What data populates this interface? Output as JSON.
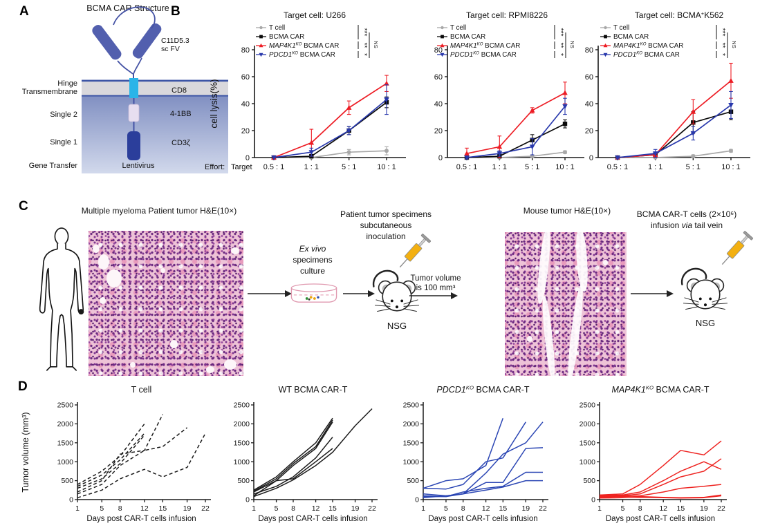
{
  "panelA": {
    "label": "A",
    "title": "BCMA CAR Structure",
    "scfv1": "C11D5.3",
    "scfv2": "sc FV",
    "left_labels": [
      "Hinge",
      "Transmembrane",
      "Single 2",
      "Single 1",
      "Gene Transfer"
    ],
    "right_labels": [
      "CD8",
      "4-1BB",
      "CD3ζ"
    ],
    "gene_transfer_value": "Lentivirus",
    "colors": {
      "membrane": "#d9d8dc",
      "membrane_edge": "#3c55a6",
      "transmembrane_cyan": "#2ab4e8",
      "costim_lavender": "#e7def0",
      "cd3z_blue": "#2b3e9b",
      "scfv_blue": "#525fae"
    }
  },
  "panelB": {
    "label": "B",
    "title_prefix": "Target cell:",
    "ylabel": "cell lysis(%)",
    "effort_label": [
      "Effort:",
      "Target"
    ],
    "legend": [
      {
        "gene": "",
        "sup": "",
        "rest": "T cell",
        "color": "#a8a8a8",
        "marker": "circle"
      },
      {
        "gene": "",
        "sup": "",
        "rest": "BCMA CAR",
        "color": "#0a0a0a",
        "marker": "square"
      },
      {
        "gene": "MAP4K1",
        "sup": "KO",
        "rest": " BCMA CAR",
        "color": "#ed1c24",
        "marker": "triangle-up"
      },
      {
        "gene": "PDCD1",
        "sup": "KO",
        "rest": " BCMA CAR",
        "color": "#2838ac",
        "marker": "triangle-down"
      }
    ],
    "significance": [
      "***",
      "**",
      "*",
      "NS"
    ]
  },
  "panelC": {
    "label": "C",
    "title_left": "Multiple myeloma  Patient tumor H&E(10×)",
    "exvivo_l1": "Ex vivo",
    "exvivo_l2": "specimens",
    "exvivo_l3": "culture",
    "inoc_l1": "Patient tumor specimens",
    "inoc_l2": "subcutaneous",
    "inoc_l3": "inoculation",
    "tumor_vol_l1": "Tumor volume",
    "tumor_vol_l2": "is 100 mm³",
    "nsg": "NSG",
    "title_mouse_he": "Mouse tumor H&E(10×)",
    "cart_l1": "BCMA CAR-T cells (2×10⁶)",
    "cart_l2_pre": "infusion ",
    "cart_l2_via": "via",
    "cart_l2_post": " tail vein"
  },
  "panelD": {
    "label": "D",
    "xlabel": "Days post CAR-T cells infusion",
    "ylabel": "Tumor volume (mm³)"
  },
  "chart_data": [
    {
      "id": "b-u266",
      "type": "line",
      "panel": "B",
      "title_value": {
        "pre": "U266",
        "sup": "",
        "post": ""
      },
      "categories": [
        "0.5 : 1",
        "1 : 1",
        "5 : 1",
        "10 : 1"
      ],
      "ylim": [
        0,
        80
      ],
      "yticks": [
        0,
        20,
        40,
        60,
        80
      ],
      "series": [
        {
          "name": "T cell",
          "color": "#a8a8a8",
          "marker": "circle",
          "values": [
            0,
            0,
            4,
            5
          ],
          "errors": [
            0.5,
            0.5,
            2,
            3
          ]
        },
        {
          "name": "BCMA CAR",
          "color": "#0a0a0a",
          "marker": "square",
          "values": [
            0,
            1,
            20,
            41
          ],
          "errors": [
            0.5,
            1,
            3,
            4
          ]
        },
        {
          "name": "MAP4K1KO BCMA CAR",
          "color": "#ed1c24",
          "marker": "triangle-up",
          "values": [
            0,
            11,
            37,
            55
          ],
          "errors": [
            0.5,
            10,
            5,
            6
          ]
        },
        {
          "name": "PDCD1KO BCMA CAR",
          "color": "#2838ac",
          "marker": "triangle-down",
          "values": [
            0,
            4,
            20,
            43
          ],
          "errors": [
            0.5,
            3,
            3,
            11
          ]
        }
      ]
    },
    {
      "id": "b-rpmi",
      "type": "line",
      "panel": "B",
      "title_value": {
        "pre": "RPMI8226",
        "sup": "",
        "post": ""
      },
      "categories": [
        "0.5 : 1",
        "1 : 1",
        "5 : 1",
        "10 : 1"
      ],
      "ylim": [
        0,
        80
      ],
      "yticks": [
        0,
        20,
        40,
        60,
        80
      ],
      "series": [
        {
          "name": "T cell",
          "color": "#a8a8a8",
          "marker": "circle",
          "values": [
            0,
            0,
            1,
            4
          ],
          "errors": [
            0.5,
            0.5,
            1,
            1
          ]
        },
        {
          "name": "BCMA CAR",
          "color": "#0a0a0a",
          "marker": "square",
          "values": [
            0,
            1,
            13,
            25
          ],
          "errors": [
            0.5,
            1,
            4,
            3
          ]
        },
        {
          "name": "MAP4K1KO BCMA CAR",
          "color": "#ed1c24",
          "marker": "triangle-up",
          "values": [
            3,
            8,
            35,
            48
          ],
          "errors": [
            4,
            8,
            2,
            8
          ]
        },
        {
          "name": "PDCD1KO BCMA CAR",
          "color": "#2838ac",
          "marker": "triangle-down",
          "values": [
            0,
            3,
            8,
            38
          ],
          "errors": [
            1,
            2,
            6,
            6
          ]
        }
      ]
    },
    {
      "id": "b-k562",
      "type": "line",
      "panel": "B",
      "title_value": {
        "pre": "BCMA",
        "sup": "+",
        "post": "K562"
      },
      "categories": [
        "0.5 : 1",
        "1 : 1",
        "5 : 1",
        "10 : 1"
      ],
      "ylim": [
        0,
        80
      ],
      "yticks": [
        0,
        20,
        40,
        60,
        80
      ],
      "series": [
        {
          "name": "T cell",
          "color": "#a8a8a8",
          "marker": "circle",
          "values": [
            0,
            0,
            1,
            5
          ],
          "errors": [
            0.5,
            0.5,
            1,
            1
          ]
        },
        {
          "name": "BCMA CAR",
          "color": "#0a0a0a",
          "marker": "square",
          "values": [
            0,
            2,
            26,
            34
          ],
          "errors": [
            0.5,
            2,
            8,
            6
          ]
        },
        {
          "name": "MAP4K1KO BCMA CAR",
          "color": "#ed1c24",
          "marker": "triangle-up",
          "values": [
            0,
            2,
            34,
            57
          ],
          "errors": [
            0.5,
            2,
            9,
            13
          ]
        },
        {
          "name": "PDCD1KO BCMA CAR",
          "color": "#2838ac",
          "marker": "triangle-down",
          "values": [
            0,
            3,
            18,
            39
          ],
          "errors": [
            1,
            3,
            5,
            10
          ]
        }
      ]
    },
    {
      "id": "d-tcell",
      "type": "line",
      "panel": "D",
      "title": {
        "gene": "",
        "sup": "",
        "rest": "T cell"
      },
      "x": [
        1,
        5,
        8,
        12,
        15,
        19,
        22
      ],
      "xlabel": "Days post CAR-T cells infusion",
      "ylim": [
        0,
        2500
      ],
      "yticks": [
        0,
        500,
        1000,
        1500,
        2000,
        2500
      ],
      "color": "#1a1a1a",
      "dash": true,
      "lines": [
        [
          400,
          750,
          1150,
          2000,
          null,
          null,
          null
        ],
        [
          350,
          650,
          1050,
          1750,
          null,
          null,
          null
        ],
        [
          300,
          550,
          950,
          1700,
          null,
          null,
          null
        ],
        [
          200,
          500,
          1200,
          1300,
          2250,
          null,
          null
        ],
        [
          150,
          400,
          900,
          1300,
          1400,
          1900,
          null
        ],
        [
          50,
          250,
          550,
          800,
          600,
          850,
          1750
        ]
      ]
    },
    {
      "id": "d-wt",
      "type": "line",
      "panel": "D",
      "title": {
        "gene": "",
        "sup": "",
        "rest": "WT BCMA CAR-T"
      },
      "x": [
        1,
        5,
        8,
        12,
        15,
        19,
        22
      ],
      "xlabel": "Days post CAR-T cells infusion",
      "ylim": [
        0,
        2500
      ],
      "yticks": [
        0,
        500,
        1000,
        1500,
        2000,
        2500
      ],
      "color": "#1a1a1a",
      "dash": false,
      "lines": [
        [
          250,
          600,
          1000,
          1500,
          2150,
          null,
          null
        ],
        [
          220,
          550,
          950,
          1400,
          2100,
          null,
          null
        ],
        [
          200,
          500,
          900,
          1350,
          2050,
          null,
          null
        ],
        [
          150,
          350,
          600,
          1100,
          1650,
          null,
          null
        ],
        [
          100,
          500,
          550,
          1000,
          1350,
          null,
          null
        ],
        [
          80,
          300,
          520,
          900,
          1250,
          1950,
          2400
        ]
      ]
    },
    {
      "id": "d-pdcd1",
      "type": "line",
      "panel": "D",
      "title": {
        "gene": "PDCD1",
        "sup": "KO",
        "rest": " BCMA CAR-T"
      },
      "x": [
        1,
        5,
        8,
        12,
        15,
        19,
        22
      ],
      "xlabel": "Days post CAR-T cells infusion",
      "ylim": [
        0,
        2500
      ],
      "yticks": [
        0,
        500,
        1000,
        1500,
        2000,
        2500
      ],
      "color": "#2b46b4",
      "dash": false,
      "lines": [
        [
          300,
          500,
          550,
          900,
          2150,
          null,
          null
        ],
        [
          300,
          280,
          400,
          1000,
          1100,
          2050,
          null
        ],
        [
          150,
          100,
          150,
          700,
          1200,
          1500,
          2050
        ],
        [
          100,
          80,
          150,
          450,
          450,
          1350,
          1370
        ],
        [
          80,
          80,
          200,
          300,
          350,
          720,
          720
        ],
        [
          50,
          100,
          150,
          250,
          330,
          500,
          500
        ]
      ]
    },
    {
      "id": "d-map4k1",
      "type": "line",
      "panel": "D",
      "title": {
        "gene": "MAP4K1",
        "sup": "KO",
        "rest": " BCMA CAR-T"
      },
      "x": [
        1,
        5,
        8,
        12,
        15,
        19,
        22
      ],
      "xlabel": "Days post CAR-T cells infusion",
      "ylim": [
        0,
        2500
      ],
      "yticks": [
        0,
        500,
        1000,
        1500,
        2000,
        2500
      ],
      "color": "#ee2320",
      "dash": false,
      "lines": [
        [
          120,
          150,
          400,
          900,
          1300,
          1180,
          1550
        ],
        [
          100,
          120,
          200,
          500,
          750,
          1000,
          800
        ],
        [
          80,
          100,
          150,
          400,
          600,
          750,
          1080
        ],
        [
          60,
          80,
          100,
          200,
          300,
          350,
          400
        ],
        [
          120,
          100,
          80,
          60,
          50,
          60,
          120
        ],
        [
          40,
          50,
          60,
          50,
          40,
          50,
          100
        ]
      ]
    }
  ]
}
